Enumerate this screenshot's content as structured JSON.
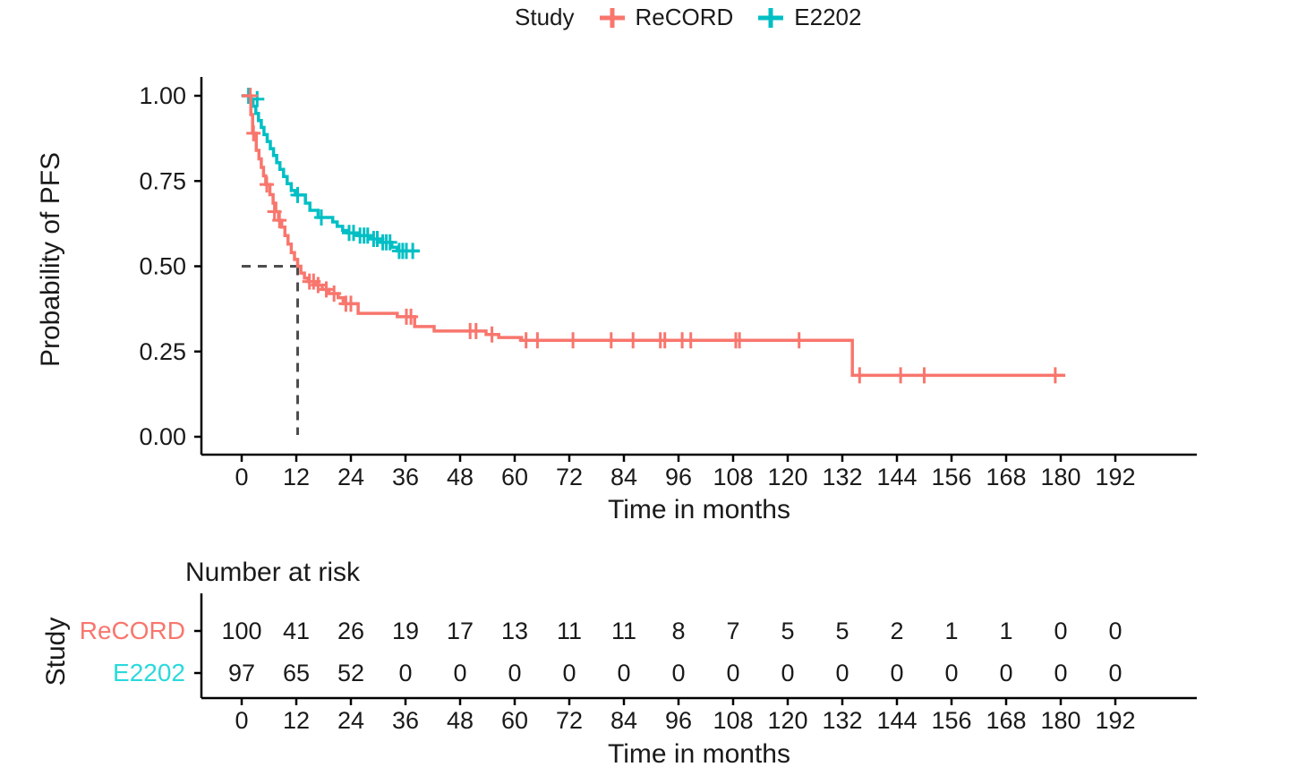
{
  "chart_data": {
    "type": "line",
    "subtype": "kaplan-meier-step",
    "title": "",
    "legend": {
      "title": "Study",
      "position": "top",
      "entries": [
        {
          "label": "ReCORD",
          "color": "#F8766D"
        },
        {
          "label": "E2202",
          "color": "#00BFC4"
        }
      ]
    },
    "y_axis": {
      "title": "Probability of PFS",
      "tick_values": [
        0,
        0.25,
        0.5,
        0.75,
        1
      ],
      "tick_labels": [
        "0.00",
        "0.25",
        "0.50",
        "0.75",
        "1.00"
      ],
      "range": [
        0,
        1
      ]
    },
    "x_axis": {
      "title": "Time in months",
      "tick_values": [
        0,
        12,
        24,
        36,
        48,
        60,
        72,
        84,
        96,
        108,
        120,
        132,
        144,
        156,
        168,
        180,
        192
      ],
      "range": [
        0,
        192
      ]
    },
    "median_line": {
      "time": 12.3,
      "prob": 0.5,
      "style": "dashed",
      "color": "#4d4d4d"
    },
    "series": [
      {
        "name": "ReCORD",
        "color": "#F8766D",
        "steps": [
          [
            0,
            1.0
          ],
          [
            2,
            0.945
          ],
          [
            2.4,
            0.89
          ],
          [
            3.2,
            0.84
          ],
          [
            3.8,
            0.815
          ],
          [
            4.3,
            0.79
          ],
          [
            4.8,
            0.765
          ],
          [
            5.3,
            0.74
          ],
          [
            6.2,
            0.71
          ],
          [
            6.9,
            0.685
          ],
          [
            7.5,
            0.66
          ],
          [
            8.1,
            0.635
          ],
          [
            8.8,
            0.615
          ],
          [
            9.5,
            0.59
          ],
          [
            10.2,
            0.565
          ],
          [
            10.9,
            0.54
          ],
          [
            11.6,
            0.52
          ],
          [
            12.3,
            0.5
          ],
          [
            13,
            0.48
          ],
          [
            13.8,
            0.465
          ],
          [
            14.6,
            0.455
          ],
          [
            16.2,
            0.445
          ],
          [
            17.7,
            0.432
          ],
          [
            19.2,
            0.42
          ],
          [
            21.2,
            0.408
          ],
          [
            22.3,
            0.39
          ],
          [
            25.6,
            0.362
          ],
          [
            34.2,
            0.352
          ],
          [
            38,
            0.323
          ],
          [
            42.3,
            0.31
          ],
          [
            53.7,
            0.3
          ],
          [
            56.5,
            0.291
          ],
          [
            61.5,
            0.283
          ],
          [
            134.2,
            0.18
          ],
          [
            181,
            0.18
          ]
        ],
        "censors": [
          [
            1.9,
            1.0
          ],
          [
            2.6,
            0.89
          ],
          [
            5.5,
            0.74
          ],
          [
            7.2,
            0.66
          ],
          [
            8.3,
            0.635
          ],
          [
            14.9,
            0.455
          ],
          [
            15.8,
            0.455
          ],
          [
            16.8,
            0.445
          ],
          [
            18.6,
            0.432
          ],
          [
            20.3,
            0.42
          ],
          [
            22.9,
            0.39
          ],
          [
            24,
            0.39
          ],
          [
            36.2,
            0.352
          ],
          [
            37.2,
            0.352
          ],
          [
            50.2,
            0.31
          ],
          [
            51.5,
            0.31
          ],
          [
            55,
            0.3
          ],
          [
            62.5,
            0.283
          ],
          [
            65,
            0.283
          ],
          [
            72.8,
            0.283
          ],
          [
            81.2,
            0.283
          ],
          [
            86,
            0.283
          ],
          [
            92,
            0.283
          ],
          [
            93,
            0.283
          ],
          [
            96.8,
            0.283
          ],
          [
            98.7,
            0.283
          ],
          [
            108.6,
            0.283
          ],
          [
            109.4,
            0.283
          ],
          [
            122.5,
            0.283
          ],
          [
            135.8,
            0.18
          ],
          [
            144.8,
            0.18
          ],
          [
            150,
            0.18
          ],
          [
            178.8,
            0.18
          ]
        ]
      },
      {
        "name": "E2202",
        "color": "#00BFC4",
        "steps": [
          [
            0,
            1.0
          ],
          [
            1.9,
            0.99
          ],
          [
            2.5,
            0.969
          ],
          [
            3.1,
            0.948
          ],
          [
            3.7,
            0.927
          ],
          [
            4.3,
            0.907
          ],
          [
            4.9,
            0.886
          ],
          [
            5.6,
            0.866
          ],
          [
            6.3,
            0.845
          ],
          [
            7,
            0.825
          ],
          [
            7.7,
            0.804
          ],
          [
            8.4,
            0.784
          ],
          [
            9.2,
            0.763
          ],
          [
            10,
            0.742
          ],
          [
            10.9,
            0.722
          ],
          [
            11.8,
            0.709
          ],
          [
            14,
            0.685
          ],
          [
            15,
            0.664
          ],
          [
            16.8,
            0.643
          ],
          [
            20,
            0.63
          ],
          [
            21,
            0.617
          ],
          [
            22.2,
            0.605
          ],
          [
            23.3,
            0.598
          ],
          [
            25.5,
            0.59
          ],
          [
            28.3,
            0.58
          ],
          [
            30.5,
            0.57
          ],
          [
            33,
            0.556
          ],
          [
            34.2,
            0.545
          ],
          [
            39,
            0.545
          ]
        ],
        "censors": [
          [
            1.5,
            1.0
          ],
          [
            3.4,
            0.99
          ],
          [
            12.3,
            0.709
          ],
          [
            17.5,
            0.643
          ],
          [
            23.6,
            0.598
          ],
          [
            24.6,
            0.598
          ],
          [
            26,
            0.59
          ],
          [
            26.9,
            0.59
          ],
          [
            27.7,
            0.59
          ],
          [
            29,
            0.58
          ],
          [
            29.8,
            0.58
          ],
          [
            31,
            0.57
          ],
          [
            31.8,
            0.57
          ],
          [
            32.6,
            0.57
          ],
          [
            34.6,
            0.545
          ],
          [
            35.4,
            0.545
          ],
          [
            36.2,
            0.545
          ],
          [
            37.6,
            0.545
          ]
        ]
      }
    ],
    "risk_table": {
      "title": "Number at risk",
      "row_axis_title": "Study",
      "x_axis_title": "Time in months",
      "times": [
        0,
        12,
        24,
        36,
        48,
        60,
        72,
        84,
        96,
        108,
        120,
        132,
        144,
        156,
        168,
        180,
        192
      ],
      "rows": [
        {
          "name": "ReCORD",
          "color": "#F8766D",
          "values": [
            100,
            41,
            26,
            19,
            17,
            13,
            11,
            11,
            8,
            7,
            5,
            5,
            2,
            1,
            1,
            0,
            0
          ]
        },
        {
          "name": "E2202",
          "color": "#2BD9DC",
          "values": [
            97,
            65,
            52,
            0,
            0,
            0,
            0,
            0,
            0,
            0,
            0,
            0,
            0,
            0,
            0,
            0,
            0
          ]
        }
      ]
    },
    "colors": {
      "axis": "#000000",
      "text": "#1a1a1a"
    }
  }
}
